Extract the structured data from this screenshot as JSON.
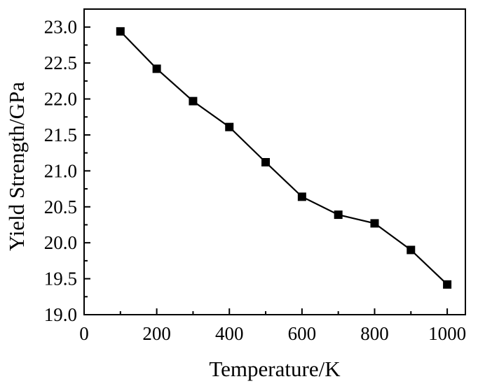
{
  "chart_data": {
    "type": "line",
    "xlabel": "Temperature/K",
    "ylabel": "Yield Strength/GPa",
    "xlim": [
      0,
      1050
    ],
    "ylim": [
      19.0,
      23.0
    ],
    "x_ticks": [
      0,
      200,
      400,
      600,
      800,
      1000
    ],
    "x_tick_labels": [
      "0",
      "200",
      "400",
      "600",
      "800",
      "1000"
    ],
    "y_ticks": [
      19.0,
      19.5,
      20.0,
      20.5,
      21.0,
      21.5,
      22.0,
      22.5,
      23.0
    ],
    "y_tick_labels": [
      "19.0",
      "19.5",
      "20.0",
      "20.5",
      "21.0",
      "21.5",
      "22.0",
      "22.5",
      "23.0"
    ],
    "grid": false,
    "marker": "square",
    "series": [
      {
        "x": [
          100,
          200,
          300,
          400,
          500,
          600,
          700,
          800,
          900,
          1000
        ],
        "values": [
          22.94,
          22.42,
          21.97,
          21.61,
          21.12,
          20.64,
          20.39,
          20.27,
          19.9,
          19.42
        ]
      }
    ],
    "color": "#000000"
  }
}
